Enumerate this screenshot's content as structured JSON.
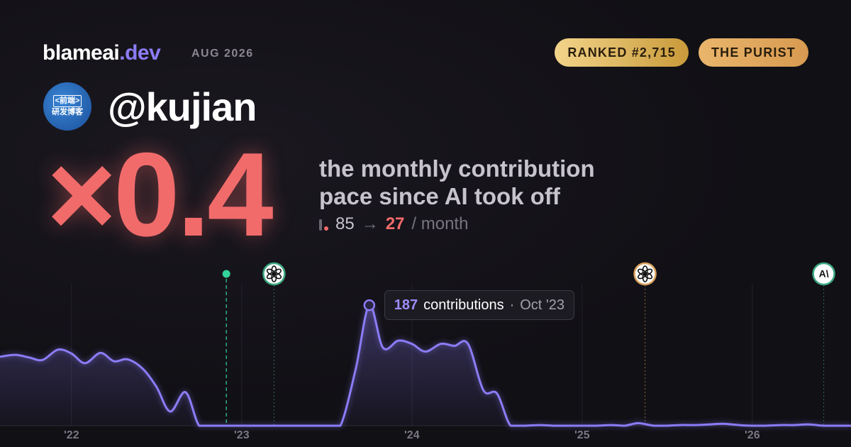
{
  "header": {
    "brand": "blameai",
    "brand_tld": ".dev",
    "date": "AUG 2026",
    "badges": [
      "RANKED #2,715",
      "THE PURIST"
    ]
  },
  "profile": {
    "avatar_lines": [
      "<前端>",
      "研发博客"
    ],
    "handle": "@kujian"
  },
  "headline": {
    "multiplier": "×0.4",
    "description": [
      "the monthly contribution",
      "pace since AI took off"
    ],
    "before": 85,
    "arrow": "→",
    "after": 27,
    "unit": "/ month"
  },
  "chart_data": {
    "type": "area",
    "x": [
      2021.58,
      2021.67,
      2021.75,
      2021.83,
      2021.92,
      2022.0,
      2022.08,
      2022.17,
      2022.25,
      2022.33,
      2022.42,
      2022.5,
      2022.58,
      2022.67,
      2022.75,
      2022.83,
      2022.92,
      2023.0,
      2023.08,
      2023.17,
      2023.25,
      2023.33,
      2023.42,
      2023.5,
      2023.58,
      2023.67,
      2023.75,
      2023.83,
      2023.92,
      2024.0,
      2024.08,
      2024.17,
      2024.25,
      2024.33,
      2024.42,
      2024.5,
      2024.58,
      2024.67,
      2024.75,
      2024.83,
      2024.92,
      2025.0,
      2025.08,
      2025.17,
      2025.25,
      2025.33,
      2025.42,
      2025.5,
      2025.58,
      2025.67,
      2025.75,
      2025.83,
      2025.92,
      2026.0,
      2026.08,
      2026.17,
      2026.25,
      2026.33,
      2026.42,
      2026.5,
      2026.58
    ],
    "values": [
      107,
      110,
      106,
      102,
      118,
      112,
      97,
      113,
      100,
      103,
      88,
      60,
      22,
      52,
      0,
      0,
      0,
      0,
      0,
      0,
      0,
      0,
      0,
      0,
      0,
      88,
      187,
      121,
      132,
      127,
      115,
      127,
      124,
      127,
      55,
      50,
      0,
      0,
      1,
      0,
      0,
      0,
      0,
      1,
      0,
      4,
      0,
      0,
      1,
      1,
      2,
      3,
      1,
      0,
      0,
      1,
      1,
      2,
      0,
      0,
      0
    ],
    "color": "#8b7cf6",
    "xlim": [
      2021.58,
      2026.58
    ],
    "ylim": [
      0,
      240
    ],
    "xticks": [
      {
        "value": 2022,
        "label": "'22"
      },
      {
        "value": 2023,
        "label": "'23"
      },
      {
        "value": 2024,
        "label": "'24"
      },
      {
        "value": 2025,
        "label": "'25"
      },
      {
        "value": 2026,
        "label": "'26"
      }
    ],
    "grid": true,
    "events": [
      {
        "x": 2022.91,
        "color": "#34d399",
        "style": "dot"
      },
      {
        "x": 2023.19,
        "color": "#3ca77f",
        "style": "openai"
      },
      {
        "x": 2025.37,
        "color": "#d9a05b",
        "style": "openai"
      },
      {
        "x": 2026.42,
        "color": "#3ca77f",
        "style": "anthropic",
        "label": "A\\"
      }
    ],
    "tooltip": {
      "unit": "contributions",
      "date": "Oct '23"
    }
  }
}
